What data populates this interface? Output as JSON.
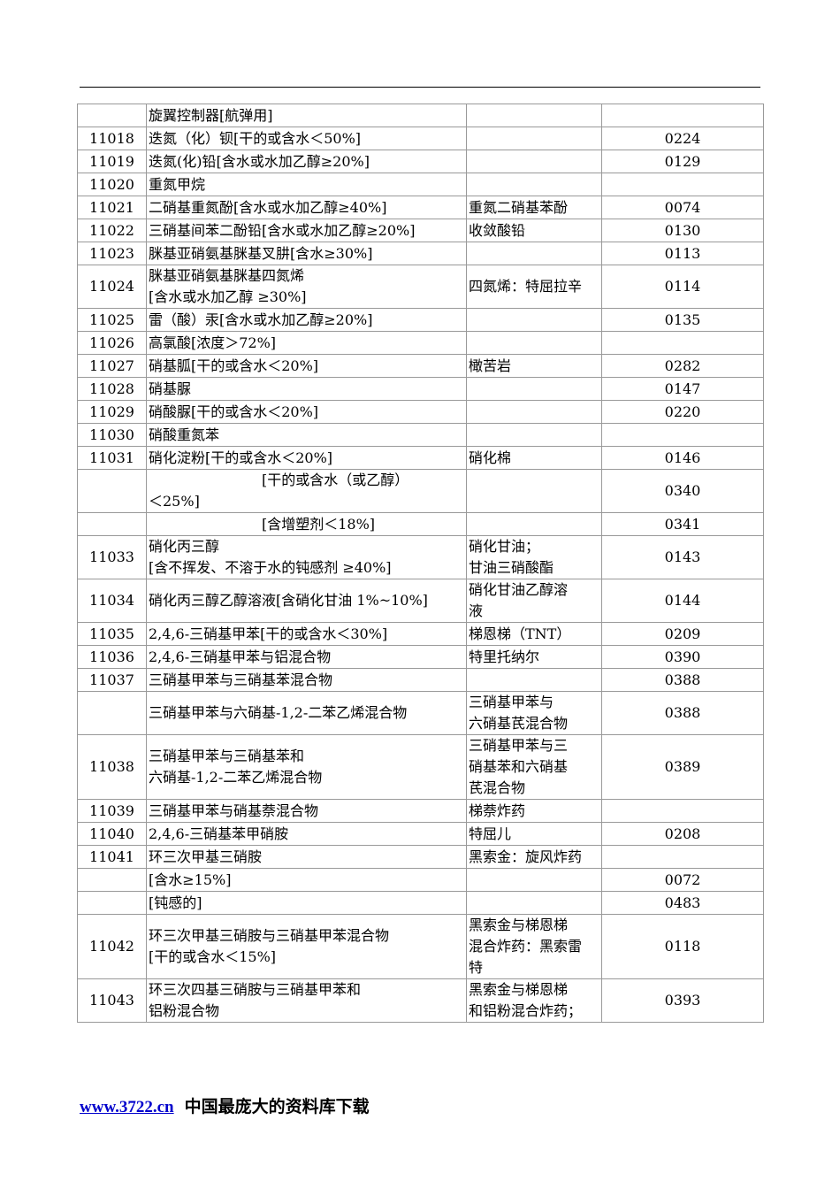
{
  "table": {
    "rows": [
      [
        null,
        "旋翼控制器[航弹用]",
        null,
        null
      ],
      [
        "11018",
        "迭氮（化）钡[干的或含水＜50%]",
        null,
        "0224"
      ],
      [
        "11019",
        "迭氮(化)铅[含水或水加乙醇≥20%]",
        null,
        "0129"
      ],
      [
        "11020",
        "重氮甲烷",
        null,
        null
      ],
      [
        "11021",
        "二硝基重氮酚[含水或水加乙醇≥40%]",
        "重氮二硝基苯酚",
        "0074"
      ],
      [
        "11022",
        "三硝基间苯二酚铅[含水或水加乙醇≥20%]",
        "收敛酸铅",
        "0130"
      ],
      [
        "11023",
        "脒基亚硝氨基脒基叉肼[含水≥30%]",
        null,
        "0113"
      ],
      [
        "11024",
        "脒基亚硝氨基脒基四氮烯\n[含水或水加乙醇 ≥30%]",
        "四氮烯：特屈拉辛",
        "0114"
      ],
      [
        "11025",
        "雷（酸）汞[含水或水加乙醇≥20%]",
        null,
        "0135"
      ],
      [
        "11026",
        "高氯酸[浓度＞72%]",
        null,
        null
      ],
      [
        "11027",
        "硝基胍[干的或含水＜20%]",
        "橄苦岩",
        "0282"
      ],
      [
        "11028",
        "硝基脲",
        null,
        "0147"
      ],
      [
        "11029",
        "硝酸脲[干的或含水＜20%]",
        null,
        "0220"
      ],
      [
        "11030",
        "硝酸重氮苯",
        null,
        null
      ],
      [
        "11031",
        "硝化淀粉[干的或含水＜20%]",
        "硝化棉",
        "0146"
      ],
      [
        null,
        "　　　　　　　　[干的或含水（或乙醇）\n＜25%]",
        null,
        "0340"
      ],
      [
        null,
        "　　　　　　　　[含增塑剂＜18%]",
        null,
        "0341"
      ],
      [
        "11033",
        "硝化丙三醇\n[含不挥发、不溶于水的钝感剂 ≥40%]",
        "硝化甘油；\n甘油三硝酸酯",
        "0143"
      ],
      [
        "11034",
        "硝化丙三醇乙醇溶液[含硝化甘油 1%~10%]",
        "硝化甘油乙醇溶\n液",
        "0144"
      ],
      [
        "11035",
        "2,4,6-三硝基甲苯[干的或含水＜30%]",
        "梯恩梯（TNT）",
        "0209"
      ],
      [
        "11036",
        "2,4,6-三硝基甲苯与铝混合物",
        "特里托纳尔",
        "0390"
      ],
      [
        "11037",
        "三硝基甲苯与三硝基苯混合物",
        null,
        "0388"
      ],
      [
        null,
        "三硝基甲苯与六硝基-1,2-二苯乙烯混合物",
        "三硝基甲苯与\n六硝基芪混合物",
        "0388"
      ],
      [
        "11038",
        "三硝基甲苯与三硝基苯和\n六硝基-1,2-二苯乙烯混合物",
        "三硝基甲苯与三\n硝基苯和六硝基\n芪混合物",
        "0389"
      ],
      [
        "11039",
        "三硝基甲苯与硝基萘混合物",
        "梯萘炸药",
        null
      ],
      [
        "11040",
        "2,4,6-三硝基苯甲硝胺",
        "特屈儿",
        "0208"
      ],
      [
        "11041",
        "环三次甲基三硝胺",
        "黑索金：旋风炸药",
        null
      ],
      [
        null,
        "[含水≥15%]",
        null,
        "0072"
      ],
      [
        null,
        "[钝感的]",
        null,
        "0483"
      ],
      [
        "11042",
        "环三次甲基三硝胺与三硝基甲苯混合物\n[干的或含水＜15%]",
        "黑索金与梯恩梯\n混合炸药：黑索雷\n特",
        "0118"
      ],
      [
        "11043",
        "环三次四基三硝胺与三硝基甲苯和\n铝粉混合物",
        "黑索金与梯恩梯\n和铝粉混合炸药；",
        "0393"
      ]
    ]
  },
  "footer": {
    "link": "www.3722.cn",
    "text": "中国最庞大的资料库下载"
  }
}
